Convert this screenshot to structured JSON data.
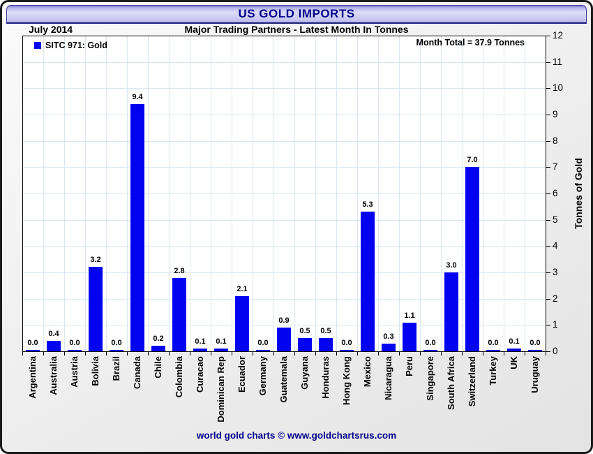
{
  "header": {
    "title": "US GOLD IMPORTS"
  },
  "subheader": {
    "date": "July 2014",
    "subtitle": "Major Trading Partners - Latest Month In Tonnes"
  },
  "legend": {
    "label": "SITC 971: Gold"
  },
  "annotations": {
    "month_total": "Month Total = 37.9 Tonnes"
  },
  "footer": {
    "credit": "world gold charts © www.goldchartsrus.com"
  },
  "colors": {
    "bar": "#0202F0",
    "title_text": "#00008B",
    "gridline": "#D9E6F2",
    "axis": "#000000",
    "titlebar_top": "#7B7BD2",
    "titlebar_light": "#DCDCF9",
    "titlebar_bottom": "#B7B7EA"
  },
  "chart_data": {
    "type": "bar",
    "title": "US GOLD IMPORTS",
    "subtitle": "Major Trading Partners - Latest Month In Tonnes",
    "period": "July 2014",
    "month_total_tonnes": 37.9,
    "legend_entries": [
      "SITC 971: Gold"
    ],
    "legend_position": "top-left-inside",
    "grid": true,
    "xlabel": "",
    "ylabel": "Tonnes of Gold",
    "ylim": [
      0,
      12
    ],
    "yticks": [
      0,
      1,
      2,
      3,
      4,
      5,
      6,
      7,
      8,
      9,
      10,
      11,
      12
    ],
    "categories": [
      "Argentina",
      "Australia",
      "Austria",
      "Bolivia",
      "Brazil",
      "Canada",
      "Chile",
      "Colombia",
      "Curacao",
      "Dominican Rep",
      "Ecuador",
      "Germany",
      "Guatemala",
      "Guyana",
      "Honduras",
      "Hong Kong",
      "Mexico",
      "Nicaragua",
      "Peru",
      "Singapore",
      "South Africa",
      "Switzerland",
      "Turkey",
      "UK",
      "Uruguay"
    ],
    "values": [
      0.0,
      0.4,
      0.0,
      3.2,
      0.0,
      9.4,
      0.2,
      2.8,
      0.1,
      0.1,
      2.1,
      0.0,
      0.9,
      0.5,
      0.5,
      0.0,
      5.3,
      0.3,
      1.1,
      0.0,
      3.0,
      7.0,
      0.0,
      0.1,
      0.0
    ]
  }
}
